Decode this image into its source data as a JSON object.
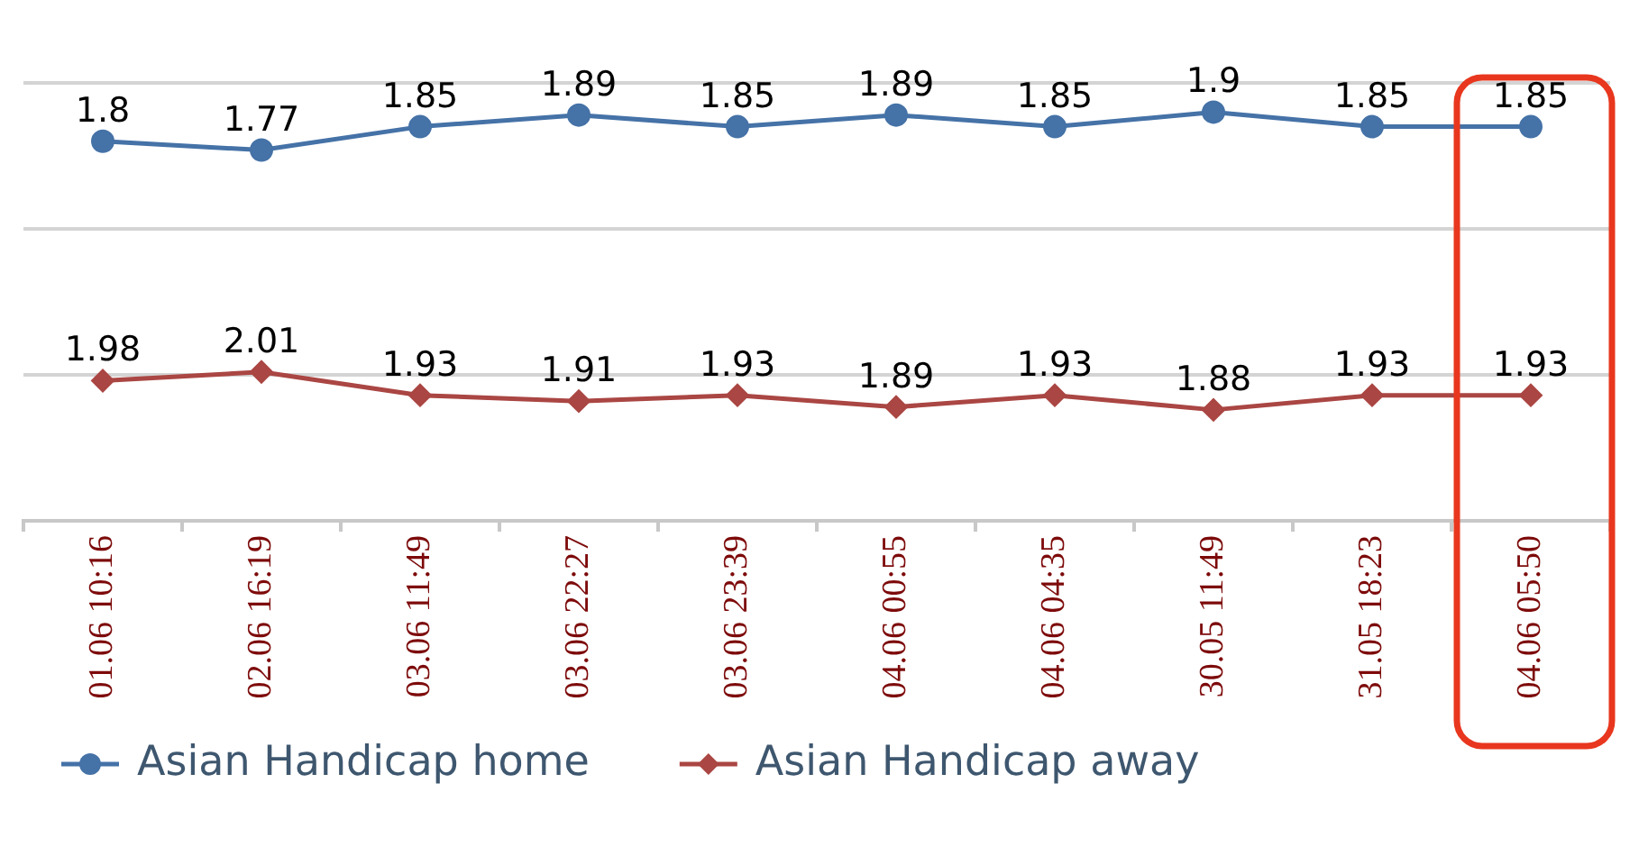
{
  "chart_data": {
    "type": "line",
    "categories": [
      "01.06 10:16",
      "02.06 16:19",
      "03.06 11:49",
      "03.06 22:27",
      "03.06 23:39",
      "04.06 00:55",
      "04.06 04:35",
      "30.05 11:49",
      "31.05 18:23",
      "04.06 05:50"
    ],
    "series": [
      {
        "name": "Asian Handicap home",
        "color": "#4572a7",
        "marker": "circle",
        "values": [
          1.8,
          1.77,
          1.85,
          1.89,
          1.85,
          1.89,
          1.85,
          1.9,
          1.85,
          1.85
        ]
      },
      {
        "name": "Asian Handicap away",
        "color": "#aa4643",
        "marker": "diamond",
        "axis": "y2",
        "values": [
          1.98,
          2.01,
          1.93,
          1.91,
          1.93,
          1.89,
          1.93,
          1.88,
          1.93,
          1.93
        ]
      }
    ],
    "ylim": [
      0.5,
      2.0
    ],
    "yticks": [
      {
        "value": 0.5,
        "label": null
      },
      {
        "value": 1.0,
        "label": null
      },
      {
        "value": 1.5,
        "label": null
      },
      {
        "value": 2.0,
        "label": null
      }
    ],
    "y2lim": [
      1.5,
      3.0
    ],
    "y2ticks": [
      {
        "value": 1.5,
        "label": null
      },
      {
        "value": 2.0,
        "label": null
      },
      {
        "value": 2.5,
        "label": null
      },
      {
        "value": 3.0,
        "label": null
      }
    ],
    "tick_labels": "x",
    "grid": "y",
    "legend": "bottom",
    "data_labels": true
  }
}
